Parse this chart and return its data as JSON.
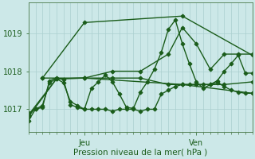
{
  "xlabel": "Pression niveau de la mer( hPa )",
  "background_color": "#cce8e8",
  "grid_color": "#aacfcf",
  "line_color": "#1a5c1a",
  "tick_color": "#1a5c1a",
  "label_color": "#1a5c1a",
  "axis_color": "#4a7a4a",
  "ylim": [
    1016.4,
    1019.8
  ],
  "yticks": [
    1017,
    1018,
    1019
  ],
  "xlim": [
    0,
    96
  ],
  "x_jeu": 24,
  "x_ven": 72,
  "xtick_minor_step": 3,
  "lines": [
    {
      "x": [
        0,
        3,
        6,
        9,
        12,
        15,
        18,
        21,
        24,
        27,
        30,
        33,
        36,
        39,
        42,
        45,
        48,
        51,
        54,
        57,
        60,
        63,
        66,
        69,
        72,
        75,
        78,
        81,
        84,
        87,
        90,
        93,
        96
      ],
      "y": [
        1016.9,
        1017.0,
        1017.1,
        1017.7,
        1017.8,
        1017.7,
        1017.2,
        1017.1,
        1017.0,
        1017.0,
        1017.0,
        1017.0,
        1016.95,
        1017.0,
        1017.0,
        1017.0,
        1016.95,
        1017.0,
        1017.0,
        1017.4,
        1017.5,
        1017.6,
        1017.65,
        1017.65,
        1017.65,
        1017.65,
        1017.65,
        1017.7,
        1017.6,
        1017.5,
        1017.45,
        1017.42,
        1017.42
      ]
    },
    {
      "x": [
        0,
        3,
        6,
        9,
        12,
        15,
        18,
        21,
        24,
        27,
        30,
        33,
        36,
        39,
        42,
        45,
        48,
        51,
        54,
        57,
        60,
        63,
        66,
        69,
        72,
        75,
        78,
        81,
        84,
        87,
        90,
        93,
        96
      ],
      "y": [
        1016.7,
        1017.0,
        1017.05,
        1017.75,
        1017.82,
        1017.78,
        1017.12,
        1017.05,
        1017.0,
        1017.55,
        1017.72,
        1017.9,
        1017.72,
        1017.4,
        1017.05,
        1017.02,
        1017.45,
        1017.72,
        1018.05,
        1018.5,
        1019.1,
        1019.35,
        1018.72,
        1018.2,
        1017.72,
        1017.55,
        1017.65,
        1017.75,
        1018.0,
        1018.2,
        1018.42,
        1017.95,
        1017.95
      ]
    },
    {
      "x": [
        0,
        12,
        24,
        36,
        48,
        60,
        66,
        72,
        78,
        84,
        90,
        96
      ],
      "y": [
        1016.8,
        1017.8,
        1017.82,
        1018.0,
        1018.0,
        1018.45,
        1019.15,
        1018.72,
        1018.05,
        1018.45,
        1018.45,
        1018.45
      ]
    },
    {
      "x": [
        0,
        12,
        24,
        36,
        48,
        60,
        66,
        72,
        84,
        96
      ],
      "y": [
        1016.85,
        1017.8,
        1017.82,
        1017.82,
        1017.82,
        1017.65,
        1017.65,
        1017.65,
        1017.65,
        1017.72
      ]
    },
    {
      "x": [
        6,
        24,
        66,
        96
      ],
      "y": [
        1017.82,
        1019.28,
        1019.45,
        1018.42
      ]
    },
    {
      "x": [
        6,
        24,
        66,
        96
      ],
      "y": [
        1017.82,
        1017.82,
        1017.65,
        1017.42
      ]
    }
  ],
  "marker": "D",
  "markersize": 2.5,
  "linewidth": 1.0,
  "figsize": [
    3.2,
    2.0
  ],
  "dpi": 100
}
